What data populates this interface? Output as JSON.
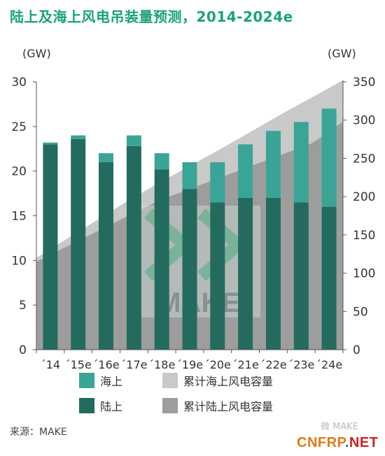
{
  "title": "陆上及海上风电吊装量预测，2014-2024e",
  "source": "来源：MAKE",
  "watermarks": {
    "weixin": "微 MAKE",
    "site_main": "CNFRP",
    "site_dot": ".",
    "site_tld": "NET"
  },
  "logo_text": "MAKE",
  "colors": {
    "onshore": "#236b5e",
    "offshore": "#3aa597",
    "cum_offshore": "#c9c9c9",
    "cum_onshore": "#9d9d9d",
    "title": "#1aa56f"
  },
  "chart_data": {
    "type": "bar",
    "title": "陆上及海上风电吊装量预测，2014-2024e",
    "categories": [
      "´14",
      "´15e",
      "´16e",
      "´17e",
      "´18e",
      "´19e",
      "´20e",
      "´21e",
      "´22e",
      "´23e",
      "´24e"
    ],
    "series": [
      {
        "name": "陆上",
        "axis": "left",
        "stacked": true,
        "values": [
          23,
          23.6,
          21,
          22.8,
          20.2,
          18,
          16.5,
          17,
          17,
          16.5,
          16
        ]
      },
      {
        "name": "海上",
        "axis": "left",
        "stacked": true,
        "values": [
          0.2,
          0.4,
          1.0,
          1.2,
          1.8,
          3.0,
          4.5,
          6.0,
          7.5,
          9.0,
          11.0
        ]
      },
      {
        "name": "累计海上风电容量",
        "axis": "right",
        "type": "area",
        "values": [
          120,
          145,
          170,
          195,
          218,
          240,
          262,
          285,
          308,
          330,
          352
        ]
      },
      {
        "name": "累计陆上风电容量",
        "axis": "right",
        "type": "area",
        "values": [
          115,
          135,
          155,
          175,
          195,
          210,
          225,
          240,
          255,
          270,
          298
        ]
      }
    ],
    "left_axis": {
      "label": "(GW)",
      "ylim": [
        0,
        30
      ],
      "ticks": [
        "0",
        "5",
        "10",
        "15",
        "20",
        "25",
        "30"
      ]
    },
    "right_axis": {
      "label": "(GW)",
      "ylim": [
        0,
        350
      ],
      "ticks": [
        "0",
        "50",
        "100",
        "150",
        "200",
        "250",
        "300",
        "350"
      ]
    },
    "legend": {
      "placement": "bottom",
      "items": [
        {
          "label": "海上",
          "color": "#3aa597"
        },
        {
          "label": "累计海上风电容量",
          "color": "#c9c9c9"
        },
        {
          "label": "陆上",
          "color": "#236b5e"
        },
        {
          "label": "累计陆上风电容量",
          "color": "#9d9d9d"
        }
      ]
    },
    "grid": false
  }
}
